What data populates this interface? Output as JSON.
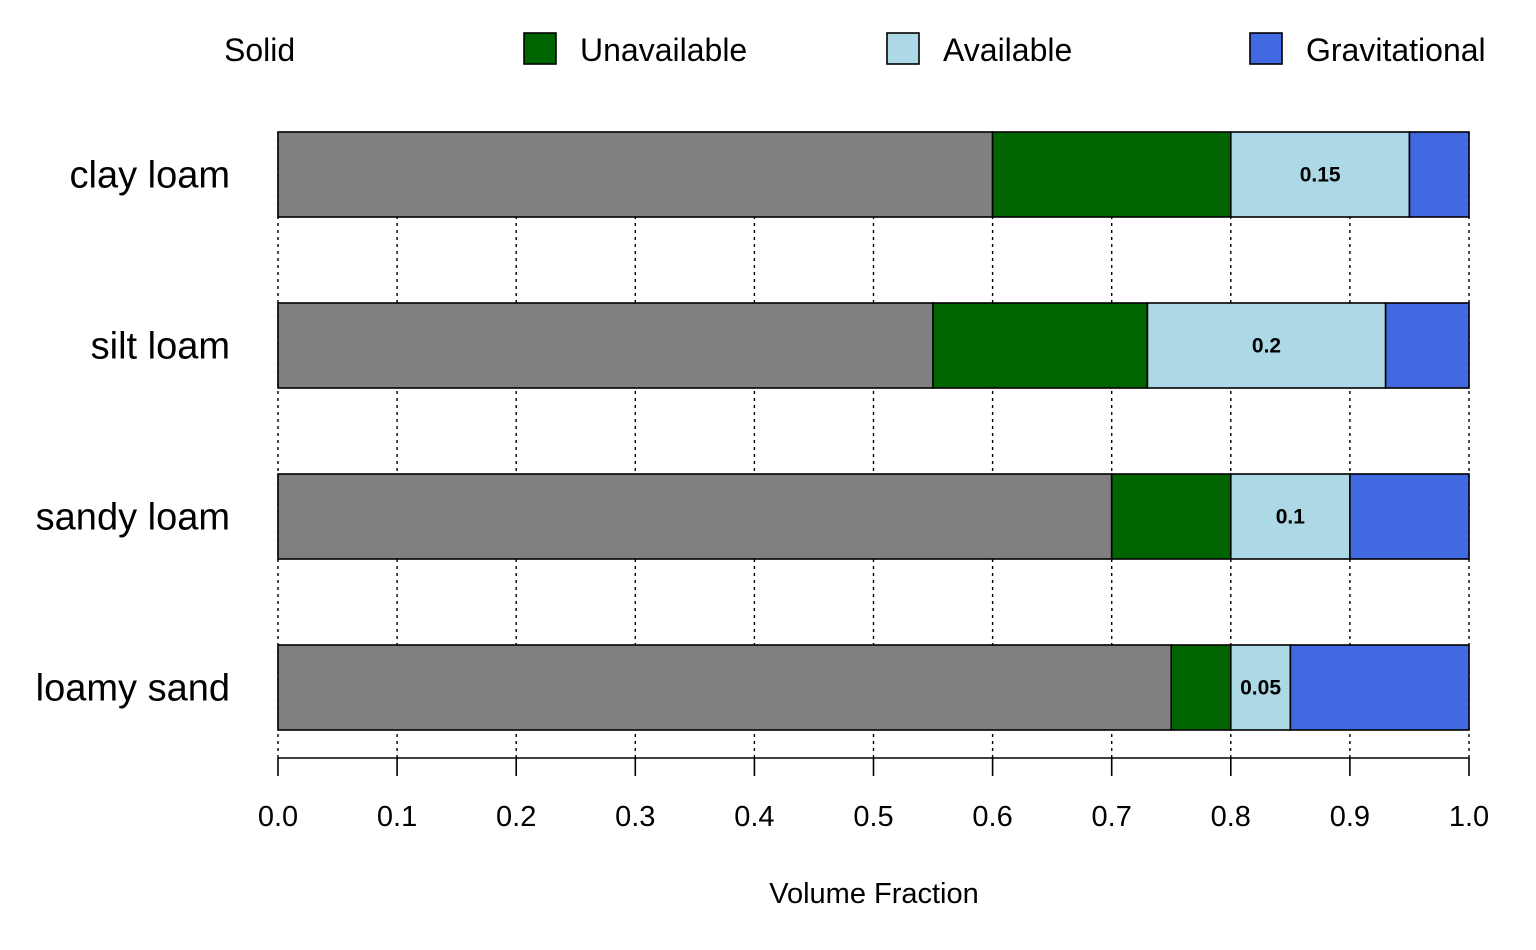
{
  "chart_data": {
    "type": "bar",
    "orientation": "horizontal",
    "stacked": true,
    "categories": [
      "clay loam",
      "silt loam",
      "sandy loam",
      "loamy sand"
    ],
    "series": [
      {
        "name": "Solid",
        "color": "#808080",
        "values": [
          0.6,
          0.55,
          0.7,
          0.75
        ]
      },
      {
        "name": "Unavailable",
        "color": "#006400",
        "values": [
          0.2,
          0.18,
          0.1,
          0.05
        ]
      },
      {
        "name": "Available",
        "color": "#add8e6",
        "values": [
          0.15,
          0.2,
          0.1,
          0.05
        ]
      },
      {
        "name": "Gravitational",
        "color": "#4169e1",
        "values": [
          0.05,
          0.07,
          0.1,
          0.15
        ]
      }
    ],
    "data_labels": [
      "0.15",
      "0.2",
      "0.1",
      "0.05"
    ],
    "data_labels_series": "Available",
    "xlabel": "Volume Fraction",
    "ylabel": "",
    "xlim": [
      0,
      1
    ],
    "xticks": [
      "0.0",
      "0.1",
      "0.2",
      "0.3",
      "0.4",
      "0.5",
      "0.6",
      "0.7",
      "0.8",
      "0.9",
      "1.0"
    ],
    "grid": "vertical dotted",
    "legend_position": "top"
  }
}
